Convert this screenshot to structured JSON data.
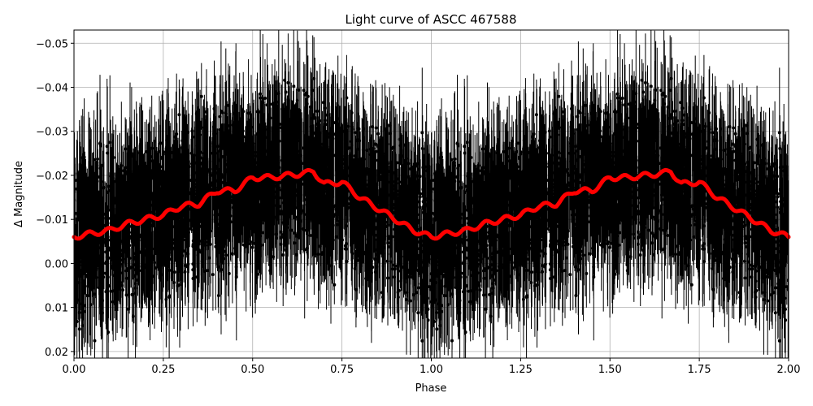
{
  "chart_data": {
    "type": "scatter",
    "title": "Light curve of ASCC 467588",
    "xlabel": "Phase",
    "ylabel": "Δ Magnitude",
    "xlim": [
      0.0,
      2.0
    ],
    "ylim": [
      0.0215,
      -0.053
    ],
    "y_inverted": true,
    "grid": true,
    "legend": null,
    "x_ticks": [
      "0.00",
      "0.25",
      "0.50",
      "0.75",
      "1.00",
      "1.25",
      "1.50",
      "1.75",
      "2.00"
    ],
    "x_tick_values": [
      0.0,
      0.25,
      0.5,
      0.75,
      1.0,
      1.25,
      1.5,
      1.75,
      2.0
    ],
    "y_ticks": [
      "−0.05",
      "−0.04",
      "−0.03",
      "−0.02",
      "−0.01",
      "0.00",
      "0.01",
      "0.02"
    ],
    "y_tick_values": [
      -0.05,
      -0.04,
      -0.03,
      -0.02,
      -0.01,
      0.0,
      0.01,
      0.02
    ],
    "series": [
      {
        "name": "observations",
        "type": "errorbar-scatter",
        "color": "#000000",
        "description": "Dense black points with vertical error bars, phase-folded and repeated over two cycles; scatter spans roughly -0.053 to 0.0215 with center near -0.012",
        "approx_center": -0.012,
        "approx_spread": 0.02
      },
      {
        "name": "binned model",
        "type": "line",
        "color": "#ff0000",
        "x": [
          0.0,
          0.05,
          0.1,
          0.15,
          0.2,
          0.25,
          0.3,
          0.35,
          0.4,
          0.45,
          0.5,
          0.55,
          0.6,
          0.65,
          0.67,
          0.7,
          0.75,
          0.8,
          0.85,
          0.9,
          0.95,
          1.0,
          1.05,
          1.1,
          1.15,
          1.2,
          1.25,
          1.3,
          1.35,
          1.4,
          1.45,
          1.5,
          1.55,
          1.6,
          1.65,
          1.67,
          1.7,
          1.75,
          1.8,
          1.85,
          1.9,
          1.95,
          2.0
        ],
        "y": [
          -0.006,
          -0.0068,
          -0.0075,
          -0.009,
          -0.01,
          -0.011,
          -0.013,
          -0.0135,
          -0.0165,
          -0.0165,
          -0.0195,
          -0.0195,
          -0.02,
          -0.0205,
          -0.021,
          -0.018,
          -0.0185,
          -0.015,
          -0.0125,
          -0.01,
          -0.0075,
          -0.006,
          -0.0068,
          -0.0075,
          -0.009,
          -0.01,
          -0.011,
          -0.013,
          -0.0135,
          -0.0165,
          -0.0165,
          -0.0195,
          -0.0195,
          -0.02,
          -0.0205,
          -0.021,
          -0.018,
          -0.0185,
          -0.015,
          -0.0125,
          -0.01,
          -0.0075,
          -0.006
        ]
      }
    ]
  },
  "colors": {
    "points": "#000000",
    "model": "#ff0000",
    "grid": "#b0b0b0",
    "frame": "#000000"
  }
}
